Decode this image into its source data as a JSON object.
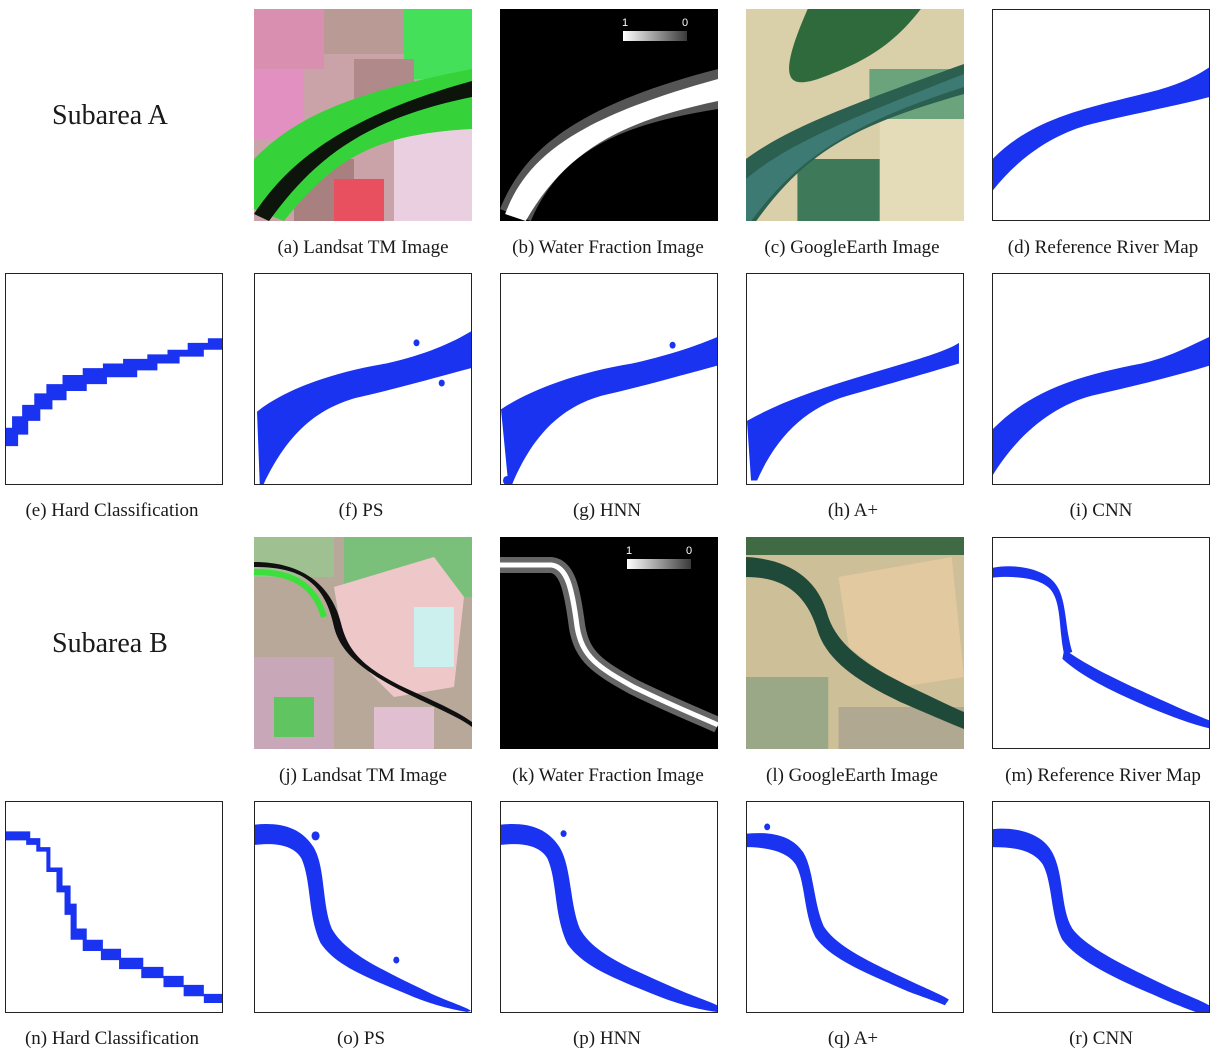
{
  "subareas": {
    "a": "Subarea A",
    "b": "Subarea B"
  },
  "captions": {
    "a": "(a) Landsat TM Image",
    "b": "(b) Water Fraction Image",
    "c": "(c) GoogleEarth Image",
    "d": "(d) Reference River Map",
    "e": "(e) Hard Classification",
    "f": "(f) PS",
    "g": "(g) HNN",
    "h": "(h) A+",
    "i": "(i) CNN",
    "j": "(j) Landsat TM Image",
    "k": "(k) Water Fraction Image",
    "l": "(l) GoogleEarth Image",
    "m": "(m) Reference River Map",
    "n": "(n) Hard Classification",
    "o": "(o) PS",
    "p": "(p) HNN",
    "q": "(q) A+",
    "r": "(r) CNN"
  },
  "scale": {
    "high": "1",
    "low": "0"
  },
  "colors": {
    "river_map": "#1a33f0",
    "water_fraction_bg": "#000000",
    "landsat_vegetation": "#2fd62f",
    "landsat_field_pink": "#d98aa3",
    "google_river": "#2f6a63",
    "google_field": "#d9c79a"
  }
}
